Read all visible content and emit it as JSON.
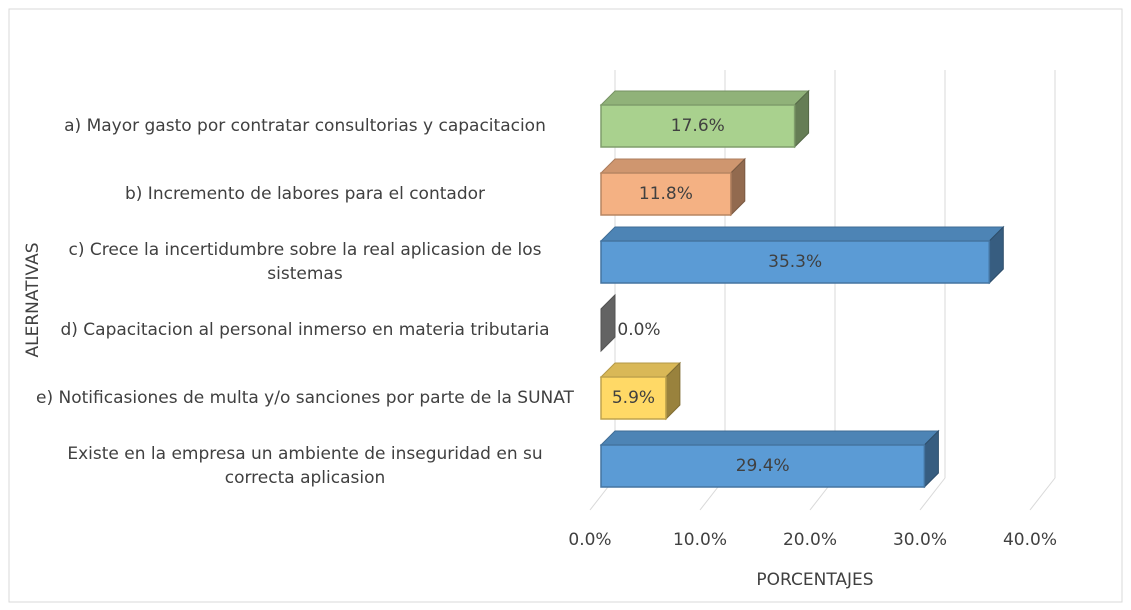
{
  "chart_data": {
    "type": "bar3d_horizontal",
    "categories": [
      "a) Mayor gasto por contratar consultorias y capacitacion",
      "b) Incremento de labores para el contador",
      "c) Crece la incertidumbre sobre la real aplicasion de los sistemas",
      "d) Capacitacion al personal inmerso en materia tributaria",
      "e) Notificasiones de multa y/o sanciones por parte de la SUNAT",
      "Existe en la empresa un ambiente de inseguridad en su correcta aplicasion"
    ],
    "values": [
      17.6,
      11.8,
      35.3,
      0.0,
      5.9,
      29.4
    ],
    "value_labels": [
      "17.6%",
      "11.8%",
      "35.3%",
      "0.0%",
      "5.9%",
      "29.4%"
    ],
    "colors": [
      "#a9d18e",
      "#f4b183",
      "#5b9bd5",
      "#a5a5a5",
      "#ffd966",
      "#5b9bd5"
    ],
    "xlim": [
      0,
      40
    ],
    "xticks": [
      {
        "value": 0,
        "label": "0.0%"
      },
      {
        "value": 10,
        "label": "10.0%"
      },
      {
        "value": 20,
        "label": "20.0%"
      },
      {
        "value": 30,
        "label": "30.0%"
      },
      {
        "value": 40,
        "label": "40.0%"
      }
    ],
    "x_label": "PORCENTAJES",
    "y_label": "ALERNATIVAS",
    "grid": true
  }
}
